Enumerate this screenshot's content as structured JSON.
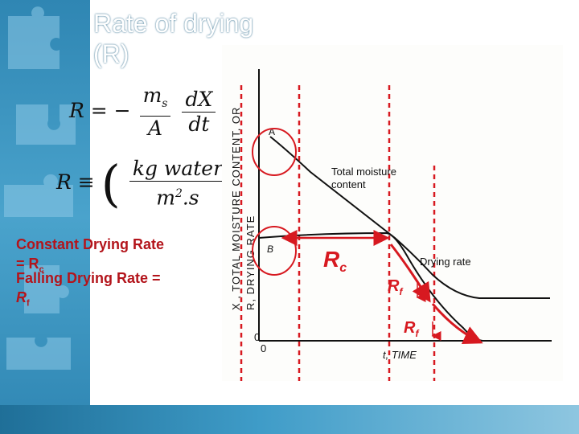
{
  "title": {
    "line1": "Rate  of  drying",
    "line2": "(R)"
  },
  "formula1": {
    "lhs": "R = −",
    "frac1_num": "m",
    "frac1_num_sub": "s",
    "frac1_den": "A",
    "frac2_num": "dX",
    "frac2_den": "dt"
  },
  "formula2": {
    "lhs": "R ≡",
    "num": "kg water",
    "den": "m",
    "den_sup": "2",
    "den_tail": ".s"
  },
  "notes": {
    "constant": "Constant Drying Rate",
    "eq_prefix": "= R",
    "eq_sub": "c",
    "falling": "Falling Drying Rate =",
    "rf": "R",
    "rf_sub": "f"
  },
  "figure": {
    "yaxis_label_1": "X , TOTAL MOISTURE CONTENT, OR",
    "yaxis_label_1_sub": "T",
    "yaxis_label_2": "R, DRYING RATE",
    "xaxis_label": "t, TIME",
    "origin_y": "0",
    "origin_x": "0",
    "point_a": "A",
    "point_b": "B",
    "curve1_label_line1": "Total moisture",
    "curve1_label_line2": "content",
    "curve2_label": "Drying rate",
    "rc_label": "R",
    "rc_sub": "c",
    "rf1_label": "R",
    "rf1_sub": "f",
    "rf2_label": "R",
    "rf2_sub": "f"
  },
  "colors": {
    "accent_red": "#d71920",
    "band_blue": "#2f86b3"
  }
}
